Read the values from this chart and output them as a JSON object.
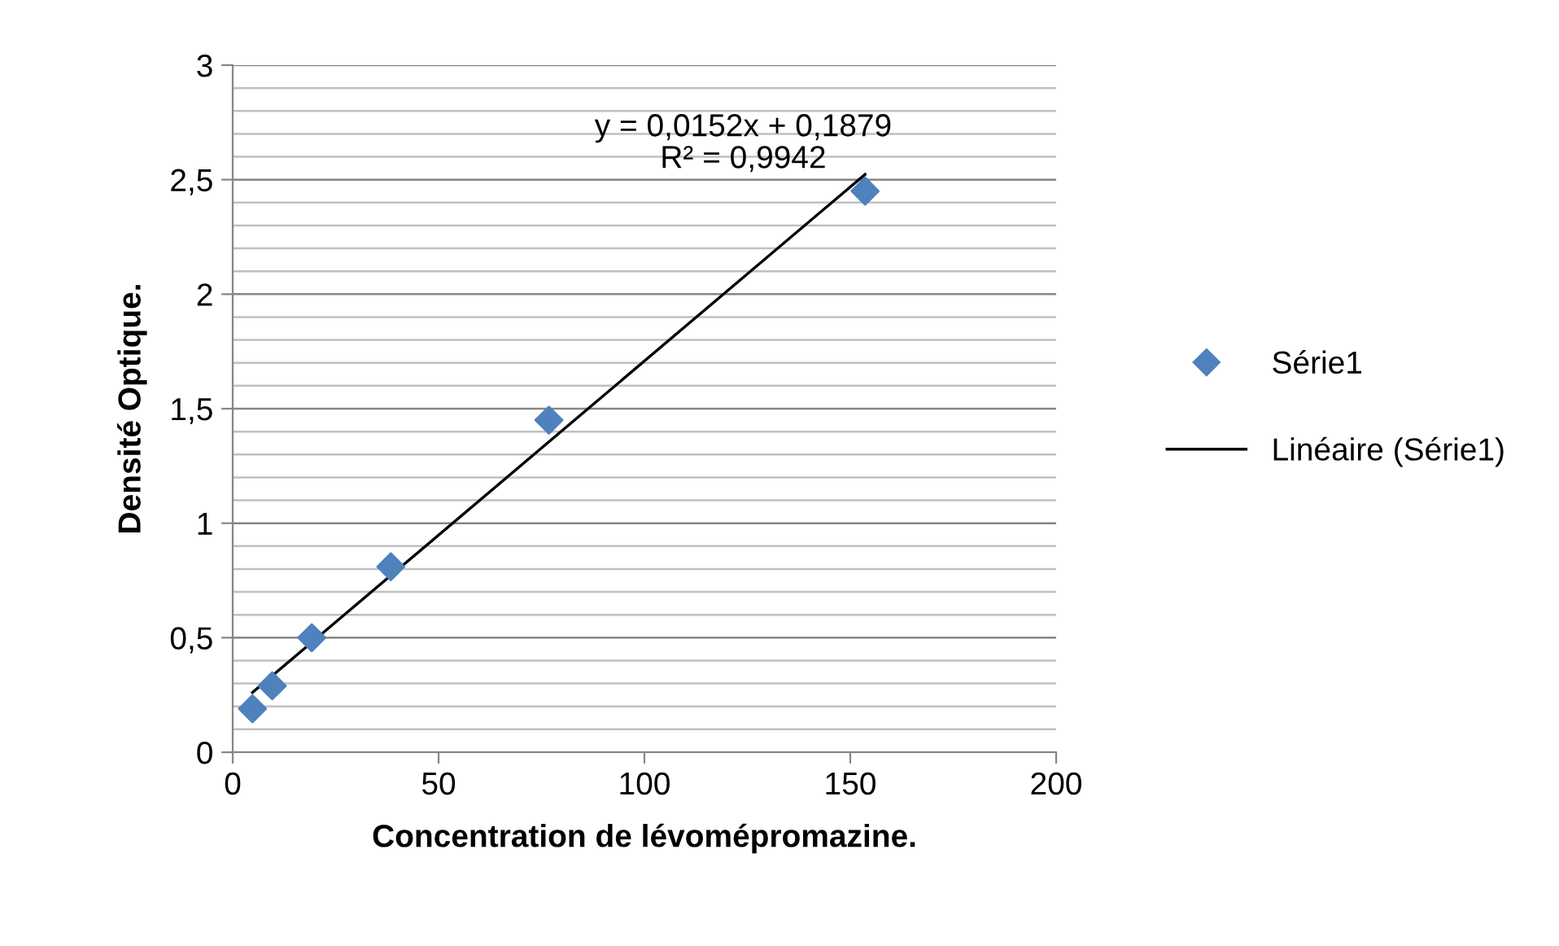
{
  "chart_data": {
    "type": "scatter",
    "xlabel": "Concentration de lévomépromazine.",
    "ylabel": "Densité Optique.",
    "series": [
      {
        "name": "Série1",
        "color": "#4f81bd",
        "marker": "diamond",
        "x": [
          4.8,
          9.6,
          19.2,
          38.4,
          76.8,
          153.6
        ],
        "values": [
          0.19,
          0.29,
          0.5,
          0.81,
          1.45,
          2.45
        ]
      },
      {
        "name": "Linéaire (Série1)",
        "type": "line",
        "color": "#000000",
        "marker": "none",
        "line_style": "solid",
        "x": [
          4.8,
          153.6
        ],
        "values": [
          0.261,
          2.523
        ]
      }
    ],
    "annotations": [
      "y = 0,0152x + 0,1879",
      "R² = 0,9942"
    ],
    "xlim": [
      0,
      200
    ],
    "xticks": [
      0,
      50,
      100,
      150,
      200
    ],
    "ylim": [
      0,
      3
    ],
    "yticks": [
      0,
      {
        "value": 0.1,
        "label": null
      },
      {
        "value": 0.2,
        "label": null
      },
      {
        "value": 0.3,
        "label": null
      },
      {
        "value": 0.4,
        "label": null
      },
      {
        "value": 0.5,
        "label": "0,5"
      },
      {
        "value": 0.6,
        "label": null
      },
      {
        "value": 0.7,
        "label": null
      },
      {
        "value": 0.8,
        "label": null
      },
      {
        "value": 0.9,
        "label": null
      },
      1,
      {
        "value": 1.1,
        "label": null
      },
      {
        "value": 1.2,
        "label": null
      },
      {
        "value": 1.3,
        "label": null
      },
      {
        "value": 1.4,
        "label": null
      },
      {
        "value": 1.5,
        "label": "1,5"
      },
      {
        "value": 1.6,
        "label": null
      },
      {
        "value": 1.7,
        "label": null
      },
      {
        "value": 1.8,
        "label": null
      },
      {
        "value": 1.9,
        "label": null
      },
      2,
      {
        "value": 2.1,
        "label": null
      },
      {
        "value": 2.2,
        "label": null
      },
      {
        "value": 2.3,
        "label": null
      },
      {
        "value": 2.4,
        "label": null
      },
      {
        "value": 2.5,
        "label": "2,5"
      },
      {
        "value": 2.6,
        "label": null
      },
      {
        "value": 2.7,
        "label": null
      },
      {
        "value": 2.8,
        "label": null
      },
      {
        "value": 2.9,
        "label": null
      },
      3
    ],
    "grid": "y",
    "legend": "right"
  }
}
